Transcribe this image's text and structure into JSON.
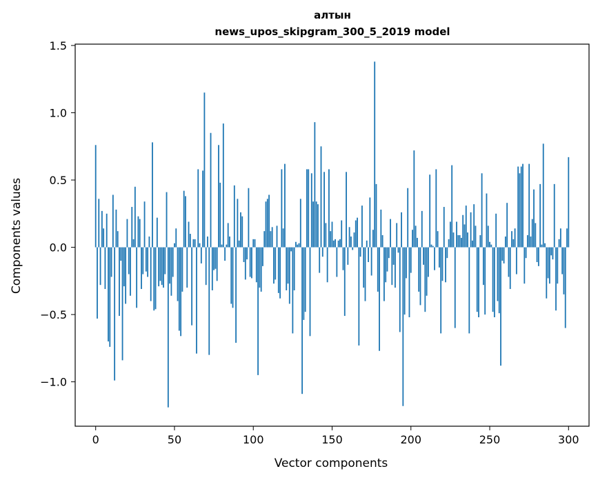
{
  "chart_data": {
    "type": "bar",
    "title": "алтын",
    "subtitle": "news_upos_skipgram_300_5_2019 model",
    "xlabel": "Vector components",
    "ylabel": "Components values",
    "xlim": [
      -13,
      313
    ],
    "ylim": [
      -1.33,
      1.51
    ],
    "xticks": [
      0,
      50,
      100,
      150,
      200,
      250,
      300
    ],
    "xtick_labels": [
      "0",
      "50",
      "100",
      "150",
      "200",
      "250",
      "300"
    ],
    "yticks": [
      -1.0,
      -0.5,
      0.0,
      0.5,
      1.0,
      1.5
    ],
    "ytick_labels": [
      "−1.0",
      "−0.5",
      "0.0",
      "0.5",
      "1.0",
      "1.5"
    ],
    "grid": false,
    "bar_color": "#1f77b4",
    "values": [
      0.76,
      -0.53,
      0.36,
      -0.28,
      0.27,
      0.14,
      -0.31,
      0.25,
      -0.7,
      -0.74,
      -0.22,
      0.39,
      -0.99,
      0.28,
      0.12,
      -0.51,
      -0.1,
      -0.84,
      -0.29,
      -0.42,
      0.21,
      -0.2,
      -0.36,
      0.3,
      0.06,
      0.45,
      -0.45,
      0.23,
      0.21,
      -0.31,
      -0.2,
      0.34,
      -0.18,
      -0.22,
      0.08,
      -0.4,
      0.78,
      -0.47,
      -0.46,
      0.22,
      -0.29,
      -0.25,
      -0.28,
      -0.3,
      -0.2,
      0.41,
      -1.19,
      -0.27,
      -0.36,
      -0.22,
      0.03,
      0.14,
      -0.4,
      -0.62,
      -0.66,
      -0.33,
      0.42,
      0.38,
      -0.3,
      0.19,
      0.1,
      -0.58,
      0.06,
      0.06,
      -0.79,
      0.58,
      0.03,
      -0.12,
      0.57,
      1.15,
      -0.28,
      0.08,
      -0.8,
      0.85,
      -0.32,
      -0.17,
      -0.16,
      -0.25,
      0.76,
      0.48,
      0.02,
      0.92,
      -0.1,
      0.02,
      0.18,
      0.08,
      -0.42,
      -0.45,
      0.46,
      -0.71,
      0.36,
      0.05,
      0.26,
      0.23,
      -0.11,
      -0.24,
      -0.09,
      0.44,
      -0.22,
      -0.23,
      0.06,
      0.06,
      -0.26,
      -0.95,
      -0.3,
      -0.33,
      -0.14,
      0.12,
      0.34,
      0.36,
      0.39,
      0.12,
      0.15,
      -0.27,
      -0.24,
      0.16,
      -0.34,
      -0.38,
      0.58,
      0.14,
      0.62,
      -0.32,
      -0.27,
      -0.42,
      -0.03,
      -0.64,
      -0.32,
      0.04,
      0.02,
      0.03,
      0.36,
      -1.09,
      -0.54,
      -0.48,
      0.58,
      0.58,
      -0.66,
      0.55,
      0.34,
      0.93,
      0.34,
      0.32,
      -0.19,
      0.75,
      -0.07,
      0.56,
      0.18,
      -0.26,
      0.58,
      0.12,
      0.19,
      0.05,
      0.06,
      -0.22,
      0.05,
      0.06,
      0.2,
      -0.17,
      -0.51,
      0.56,
      -0.13,
      0.15,
      0.08,
      -0.02,
      0.11,
      0.2,
      0.22,
      -0.73,
      -0.07,
      0.31,
      -0.3,
      -0.4,
      0.05,
      -0.11,
      0.37,
      -0.21,
      0.13,
      1.38,
      0.47,
      -0.33,
      -0.77,
      0.28,
      0.09,
      -0.4,
      -0.26,
      -0.18,
      -0.08,
      0.21,
      -0.28,
      -0.13,
      -0.3,
      0.18,
      -0.04,
      -0.63,
      0.26,
      -1.18,
      -0.5,
      -0.23,
      0.44,
      -0.52,
      -0.19,
      0.13,
      0.72,
      0.16,
      0.07,
      -0.33,
      -0.43,
      0.27,
      -0.13,
      -0.48,
      -0.36,
      -0.22,
      0.54,
      0.02,
      0.01,
      -0.17,
      0.58,
      0.12,
      -0.15,
      -0.64,
      -0.25,
      0.3,
      -0.26,
      -0.08,
      0.06,
      0.19,
      0.61,
      0.11,
      -0.6,
      0.19,
      0.09,
      0.09,
      0.07,
      0.24,
      0.17,
      0.31,
      0.11,
      -0.64,
      0.26,
      0.05,
      0.32,
      0.16,
      -0.48,
      -0.52,
      0.09,
      0.55,
      -0.28,
      -0.5,
      0.4,
      0.16,
      0.04,
      0.02,
      -0.48,
      -0.52,
      0.25,
      -0.4,
      -0.49,
      -0.88,
      -0.1,
      -0.12,
      0.08,
      0.33,
      -0.22,
      -0.31,
      0.12,
      0.06,
      0.14,
      -0.2,
      0.6,
      0.55,
      0.6,
      0.62,
      -0.27,
      -0.08,
      0.09,
      0.62,
      0.08,
      0.21,
      0.43,
      0.18,
      -0.11,
      -0.14,
      0.47,
      0.02,
      0.77,
      0.03,
      -0.38,
      -0.23,
      -0.27,
      -0.06,
      -0.09,
      0.47,
      -0.47,
      -0.27,
      0.06,
      0.14,
      -0.2,
      -0.35,
      -0.6,
      0.14,
      0.67
    ]
  }
}
